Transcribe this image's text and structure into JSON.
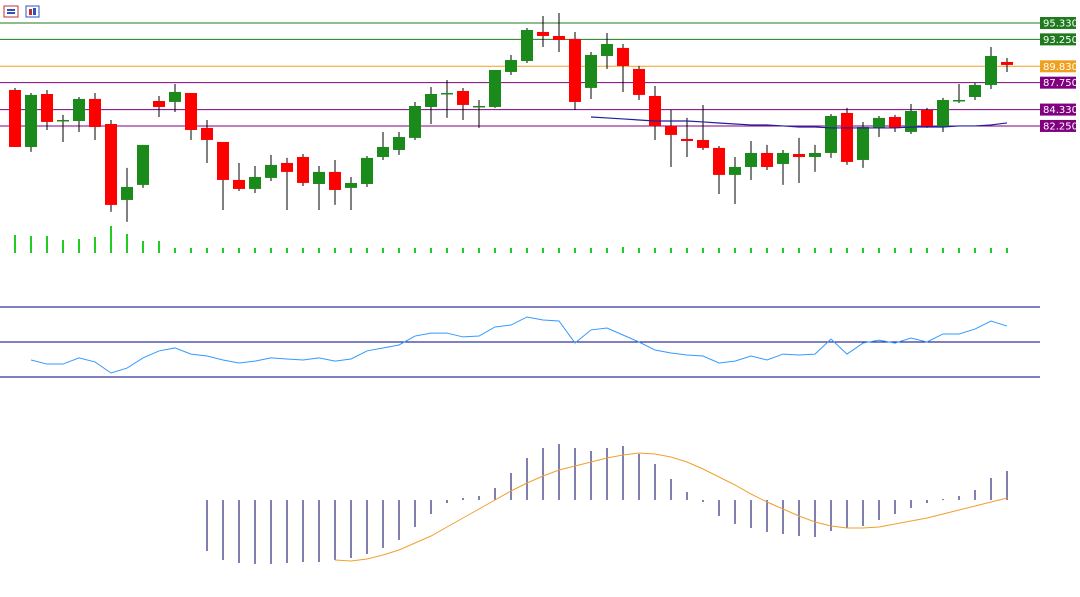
{
  "chart_data": [
    {
      "type": "candlestick",
      "up_color": "#1a8a1a",
      "down_color": "#ff0000",
      "ma_color": "#2020a0",
      "volume_color": "#22cc22",
      "ylim": [
        70.05,
        98.25
      ],
      "levels": [
        {
          "value": 95.33,
          "label": "95.330",
          "color": "#1f7a1f"
        },
        {
          "value": 93.25,
          "label": "93.250",
          "color": "#1f7a1f"
        },
        {
          "value": 89.83,
          "label": "89.830",
          "color": "#f0a020"
        },
        {
          "value": 87.75,
          "label": "87.750",
          "color": "#800080"
        },
        {
          "value": 84.33,
          "label": "84.330",
          "color": "#800080"
        },
        {
          "value": 82.25,
          "label": "82.250",
          "color": "#800080"
        }
      ],
      "open": [
        86.82,
        79.58,
        86.31,
        83.01,
        82.88,
        85.68,
        82.5,
        72.85,
        74.76,
        85.42,
        85.3,
        86.44,
        82.0,
        80.22,
        75.39,
        74.25,
        75.65,
        77.55,
        78.31,
        74.88,
        76.41,
        74.38,
        74.88,
        78.31,
        79.2,
        80.73,
        84.66,
        86.44,
        86.69,
        84.79,
        84.66,
        89.11,
        90.5,
        94.19,
        93.68,
        93.3,
        87.08,
        91.14,
        92.16,
        89.49,
        86.06,
        82.25,
        80.6,
        80.47,
        79.46,
        76.03,
        77.04,
        78.82,
        77.42,
        78.69,
        78.31,
        78.82,
        83.9,
        77.93,
        82.0,
        83.39,
        81.49,
        84.28,
        82.12,
        85.55,
        85.93,
        87.46,
        90.38
      ],
      "high": [
        87.07,
        86.44,
        86.82,
        83.65,
        85.93,
        86.44,
        83.01,
        76.92,
        79.84,
        86.06,
        87.58,
        86.44,
        83.01,
        80.22,
        77.55,
        77.17,
        78.57,
        78.19,
        78.69,
        77.17,
        77.93,
        75.77,
        78.44,
        81.49,
        81.49,
        85.3,
        87.2,
        88.09,
        87.07,
        85.55,
        89.36,
        91.27,
        94.7,
        96.22,
        96.6,
        94.19,
        91.65,
        94.06,
        92.66,
        89.87,
        87.33,
        84.28,
        83.27,
        84.92,
        79.71,
        78.31,
        80.34,
        79.84,
        79.2,
        80.73,
        79.84,
        83.77,
        84.54,
        82.76,
        83.52,
        83.65,
        85.04,
        84.54,
        85.81,
        87.58,
        87.71,
        92.28,
        90.89
      ],
      "low": [
        79.58,
        78.95,
        81.74,
        80.22,
        81.49,
        80.47,
        71.33,
        70.06,
        74.38,
        83.39,
        84.03,
        80.47,
        77.55,
        71.58,
        73.99,
        73.74,
        75.26,
        71.58,
        74.63,
        71.58,
        72.22,
        71.58,
        74.5,
        77.93,
        78.57,
        80.47,
        82.5,
        83.27,
        83.01,
        82.0,
        84.54,
        88.73,
        90.25,
        92.28,
        91.65,
        84.28,
        85.68,
        89.49,
        86.57,
        85.55,
        80.47,
        77.04,
        78.31,
        79.2,
        73.61,
        72.34,
        75.39,
        76.66,
        74.76,
        75.01,
        76.41,
        78.19,
        77.3,
        76.92,
        80.85,
        81.49,
        81.23,
        82.0,
        81.49,
        85.17,
        85.55,
        86.95,
        89.11
      ],
      "close": [
        79.58,
        86.19,
        82.76,
        83.01,
        85.68,
        82.12,
        72.22,
        74.5,
        79.84,
        84.66,
        86.57,
        81.74,
        80.47,
        75.39,
        74.25,
        75.77,
        77.3,
        76.41,
        75.01,
        76.41,
        74.12,
        75.01,
        78.19,
        79.58,
        80.85,
        84.79,
        86.31,
        86.44,
        84.92,
        84.79,
        89.36,
        90.63,
        94.44,
        93.68,
        93.17,
        85.3,
        91.27,
        92.66,
        89.87,
        86.19,
        82.25,
        81.11,
        80.34,
        79.46,
        76.03,
        77.04,
        78.82,
        77.04,
        78.82,
        78.31,
        78.82,
        83.52,
        77.68,
        82.12,
        83.27,
        82.0,
        84.15,
        82.25,
        85.55,
        85.55,
        87.46,
        91.14,
        90.0
      ],
      "ma": [
        null,
        null,
        null,
        null,
        null,
        null,
        null,
        null,
        null,
        null,
        null,
        null,
        null,
        null,
        null,
        null,
        null,
        null,
        null,
        null,
        null,
        null,
        null,
        null,
        null,
        null,
        null,
        null,
        null,
        null,
        null,
        null,
        null,
        null,
        null,
        null,
        83.39,
        83.27,
        83.14,
        83.01,
        82.88,
        82.88,
        82.88,
        82.76,
        82.63,
        82.5,
        82.38,
        82.38,
        82.25,
        82.12,
        82.12,
        82.0,
        82.0,
        82.0,
        82.0,
        82.0,
        82.12,
        82.12,
        82.12,
        82.25,
        82.25,
        82.38,
        82.63
      ],
      "volume": [
        18,
        17,
        17,
        13,
        14,
        16,
        27,
        19,
        12,
        12,
        5,
        5,
        5,
        5,
        5,
        5,
        5,
        5,
        5,
        5,
        5,
        5,
        5,
        5,
        5,
        5,
        5,
        5,
        5,
        5,
        5,
        5,
        5,
        5,
        5,
        5,
        5,
        5,
        6,
        5,
        5,
        5,
        5,
        5,
        5,
        5,
        5,
        5,
        5,
        5,
        5,
        5,
        5,
        5,
        5,
        5,
        5,
        5,
        5,
        5,
        5,
        5,
        5
      ]
    },
    {
      "type": "line",
      "color": "#3399ff",
      "level_color": "#000080",
      "ylim": [
        30,
        70
      ],
      "yticks": [
        30,
        50,
        70
      ],
      "grid": true,
      "values": [
        null,
        39.7,
        37.4,
        37.4,
        40.9,
        38.6,
        32.3,
        35.1,
        40.9,
        44.9,
        46.6,
        43.1,
        42.0,
        39.7,
        38.0,
        39.1,
        40.9,
        40.3,
        39.7,
        40.9,
        39.1,
        40.3,
        44.9,
        46.6,
        48.3,
        53.4,
        55.1,
        55.1,
        52.9,
        53.4,
        58.6,
        59.7,
        64.3,
        62.6,
        62.0,
        49.4,
        56.9,
        58.0,
        54.0,
        50.0,
        45.4,
        43.7,
        42.6,
        42.0,
        38.0,
        39.1,
        42.0,
        39.7,
        43.1,
        42.6,
        43.1,
        51.7,
        43.1,
        49.4,
        51.1,
        49.4,
        52.3,
        50.0,
        54.6,
        54.6,
        57.4,
        62.0,
        59.1
      ]
    },
    {
      "type": "bar",
      "color": "#000060",
      "signal_color": "#f0a030",
      "ylim": [
        -65,
        60
      ],
      "values": [
        null,
        null,
        null,
        null,
        null,
        null,
        null,
        null,
        null,
        null,
        null,
        null,
        -51,
        -60,
        -63,
        -64,
        -64,
        -63,
        -62,
        -62,
        -60,
        -58,
        -54,
        -48,
        -40,
        -27,
        -14,
        -3,
        2,
        4,
        12,
        27,
        42,
        52,
        56,
        52,
        49,
        52,
        54,
        46,
        36,
        21,
        8,
        -2,
        -16,
        -24,
        -28,
        -32,
        -34,
        -36,
        -37,
        -31,
        -28,
        -26,
        -20,
        -14,
        -8,
        -3,
        1,
        4,
        10,
        22,
        29
      ],
      "signal": [
        null,
        null,
        null,
        null,
        null,
        null,
        null,
        null,
        null,
        null,
        null,
        null,
        null,
        null,
        null,
        null,
        null,
        null,
        null,
        null,
        -60,
        -61,
        -59,
        -55,
        -50,
        -43,
        -36,
        -27,
        -18,
        -9,
        0,
        9,
        17,
        24,
        30,
        34,
        38,
        42,
        45,
        47,
        46,
        43,
        38,
        31,
        23,
        15,
        6,
        -2,
        -9,
        -16,
        -22,
        -26,
        -28,
        -28,
        -27,
        -24,
        -21,
        -18,
        -14,
        -10,
        -6,
        -2,
        2
      ]
    }
  ]
}
